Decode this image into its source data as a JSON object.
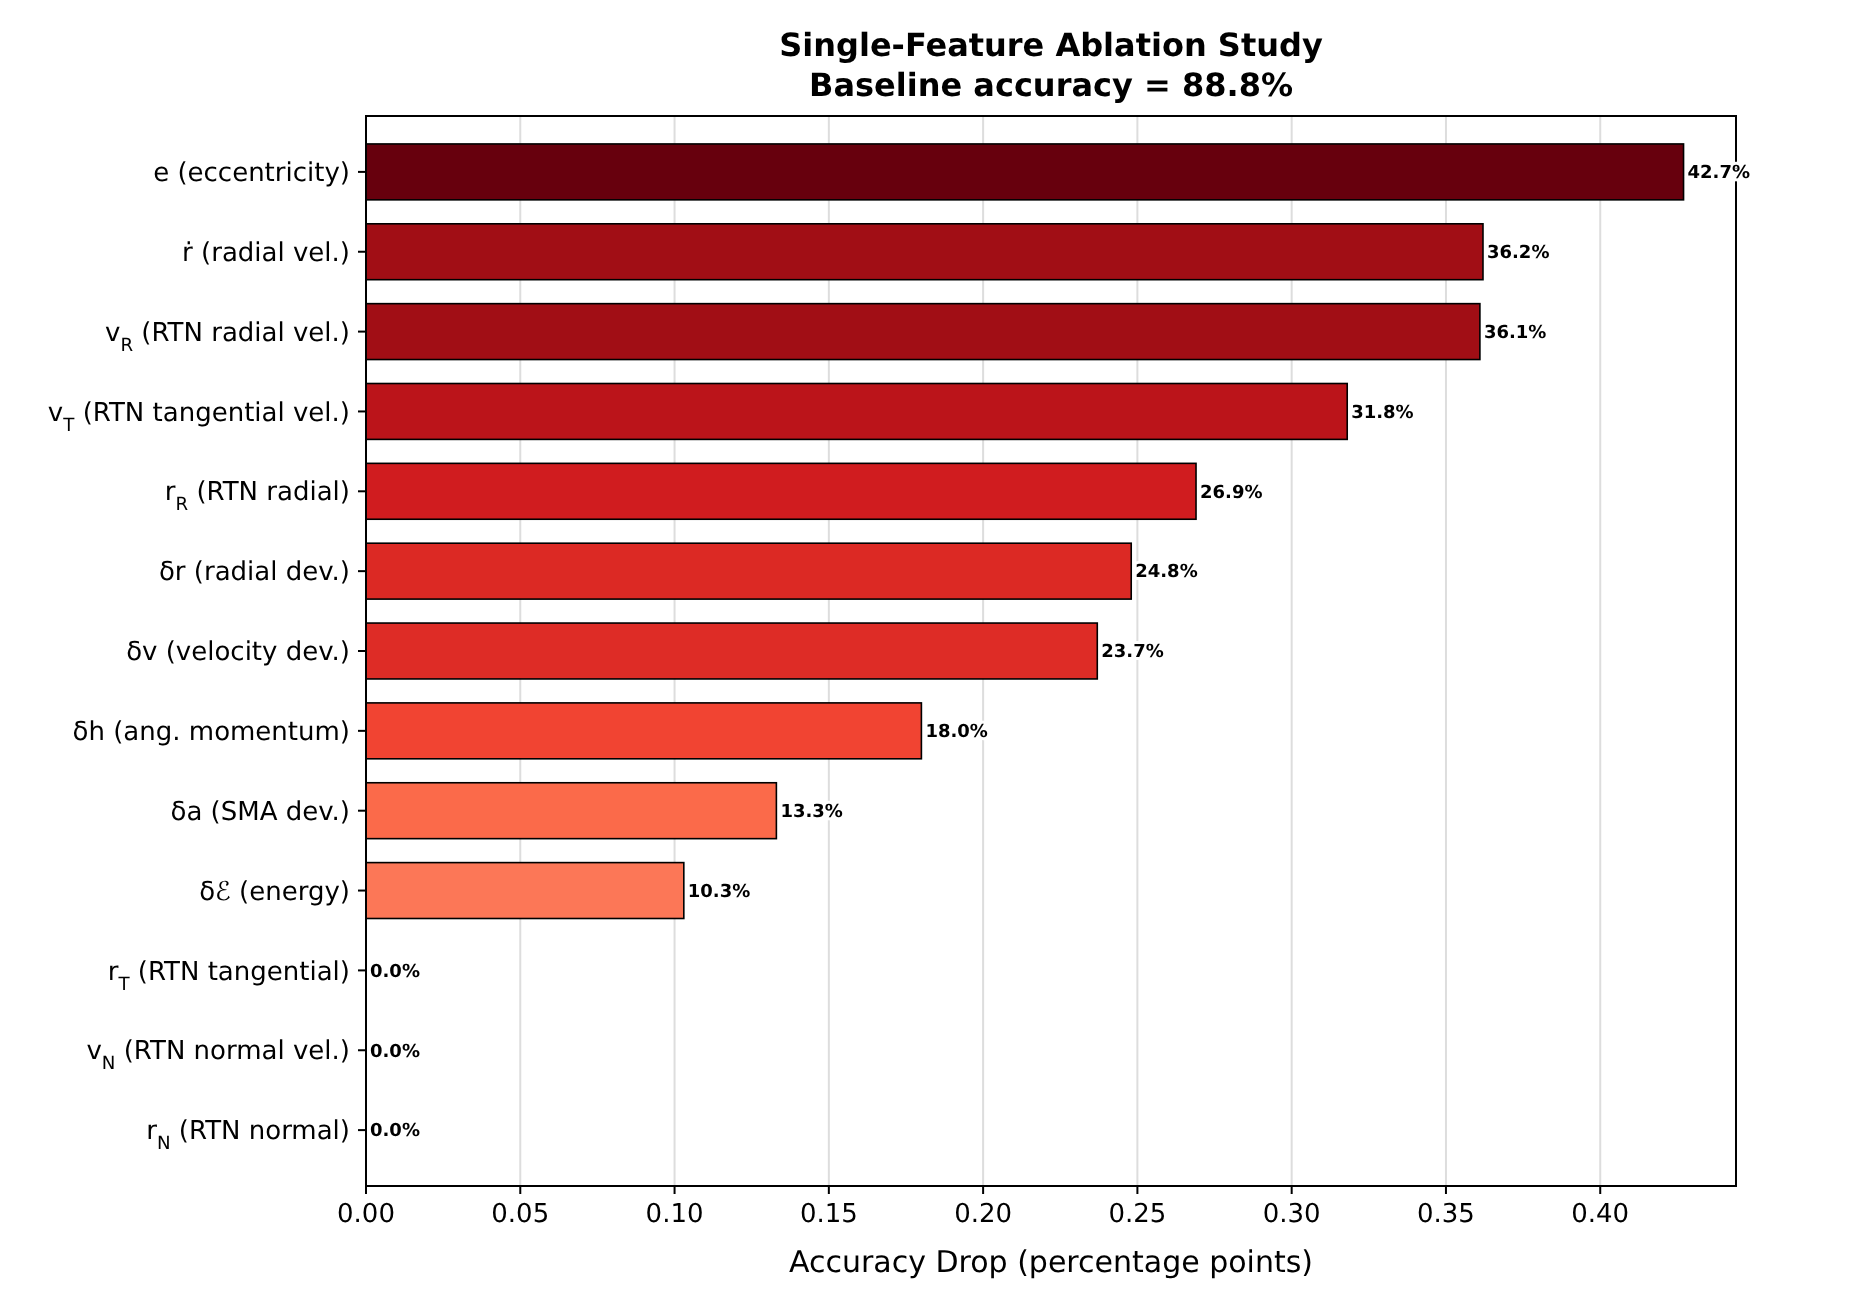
{
  "chart_data": {
    "type": "bar",
    "orientation": "horizontal",
    "title": "Single-Feature Ablation Study",
    "subtitle": "Baseline accuracy = 88.8%",
    "xlabel": "Accuracy Drop (percentage points)",
    "categories": [
      "e (eccentricity)",
      "ṙ (radial vel.)",
      "v$_{R}$ (RTN radial vel.)",
      "v$_{T}$ (RTN tangential vel.)",
      "r$_{R}$ (RTN radial)",
      "δr (radial dev.)",
      "δv (velocity dev.)",
      "δh (ang. momentum)",
      "δa (SMA dev.)",
      "δℰ (energy)",
      "r$_{T}$ (RTN tangential)",
      "v$_{N}$ (RTN normal vel.)",
      "r$_{N}$ (RTN normal)"
    ],
    "values": [
      0.427,
      0.362,
      0.361,
      0.318,
      0.269,
      0.248,
      0.237,
      0.18,
      0.133,
      0.103,
      0,
      0,
      0
    ],
    "colors": [
      "#67000d",
      "#a10e15",
      "#a10e15",
      "#bb141a",
      "#d01c1f",
      "#dc2924",
      "#de2c26",
      "#f14432",
      "#fb6a4a",
      "#fc7757",
      "#fff5f0",
      "#fff5f0",
      "#fff5f0"
    ],
    "value_labels": [
      "42.7%",
      "36.2%",
      "36.1%",
      "31.8%",
      "26.9%",
      "24.8%",
      "23.7%",
      "18.0%",
      "13.3%",
      "10.3%",
      "0.0%",
      "0.0%",
      "0.0%"
    ],
    "xlim": [
      0,
      0.444
    ],
    "xticks": [
      {
        "value": 0,
        "label": "0.00"
      },
      {
        "value": 0.05,
        "label": "0.05"
      },
      {
        "value": 0.1,
        "label": "0.10"
      },
      {
        "value": 0.15,
        "label": "0.15"
      },
      {
        "value": 0.2,
        "label": "0.20"
      },
      {
        "value": 0.25,
        "label": "0.25"
      },
      {
        "value": 0.3,
        "label": "0.30"
      },
      {
        "value": 0.35,
        "label": "0.35"
      },
      {
        "value": 0.4,
        "label": "0.40"
      }
    ],
    "grid": "x"
  }
}
